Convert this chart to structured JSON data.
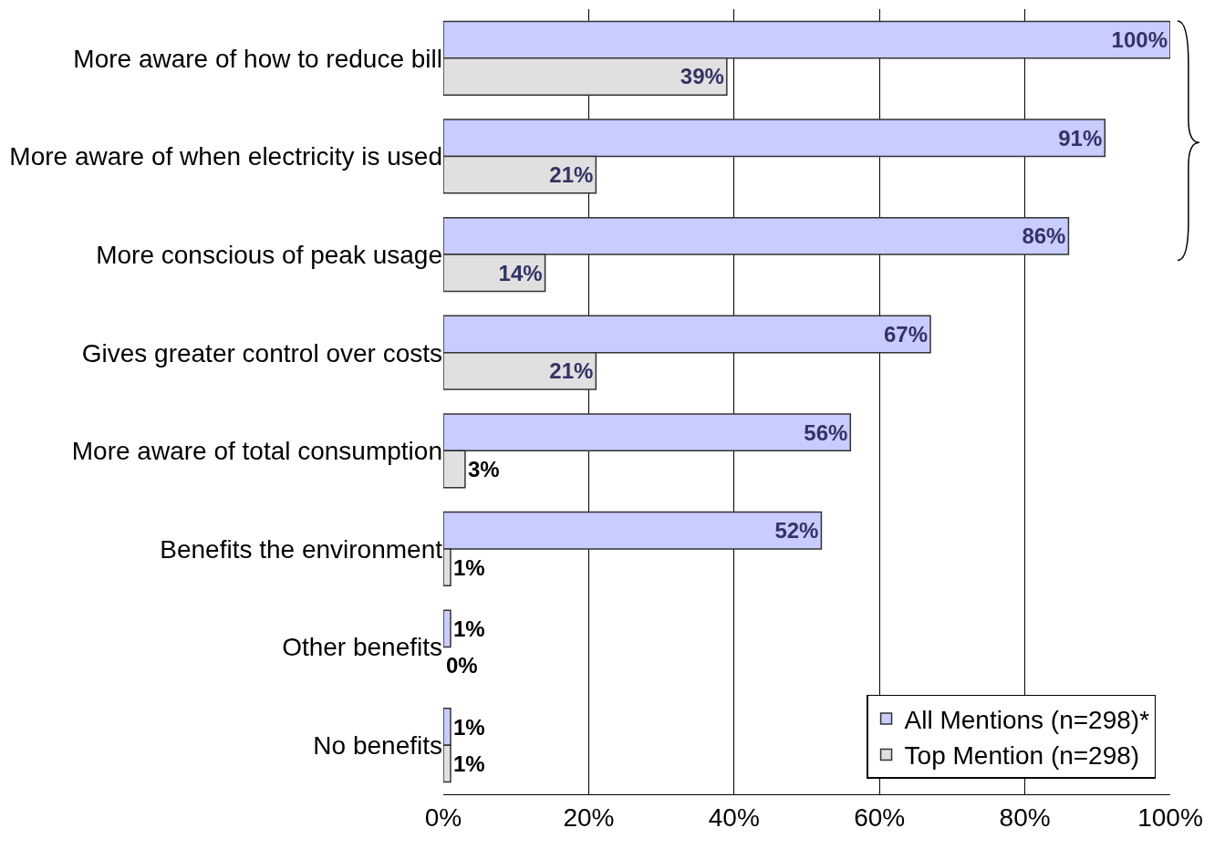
{
  "chart_data": {
    "type": "bar",
    "orientation": "horizontal",
    "categories": [
      "More aware of how to reduce bill",
      "More aware of when electricity is used",
      "More conscious of peak usage",
      "Gives greater control over costs",
      "More aware of total consumption",
      "Benefits the environment",
      "Other benefits",
      "No benefits"
    ],
    "series": [
      {
        "name": "All Mentions (n=298)*",
        "color": "#c8ccff",
        "values": [
          100,
          91,
          86,
          67,
          56,
          52,
          1,
          1
        ],
        "value_labels": [
          "100%",
          "91%",
          "86%",
          "67%",
          "56%",
          "52%",
          "1%",
          "1%"
        ]
      },
      {
        "name": "Top Mention (n=298)",
        "color": "#e0e0e0",
        "values": [
          39,
          21,
          14,
          21,
          3,
          1,
          0,
          1
        ],
        "value_labels": [
          "39%",
          "21%",
          "14%",
          "21%",
          "3%",
          "1%",
          "0%",
          "1%"
        ]
      }
    ],
    "xlim": [
      0,
      100
    ],
    "xticks": [
      {
        "value": 0,
        "label": "0%"
      },
      {
        "value": 20,
        "label": "20%"
      },
      {
        "value": 40,
        "label": "40%"
      },
      {
        "value": 60,
        "label": "60%"
      },
      {
        "value": 80,
        "label": "80%"
      },
      {
        "value": 100,
        "label": "100%"
      }
    ],
    "grid": "x",
    "legend": "bottom right"
  }
}
